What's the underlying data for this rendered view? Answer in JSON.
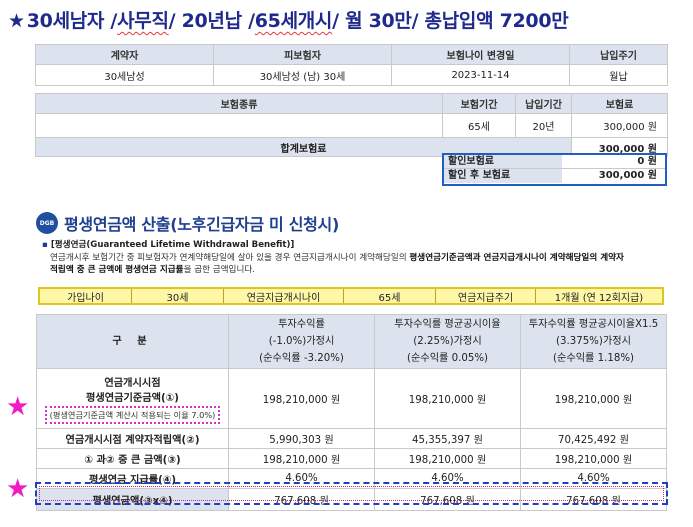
{
  "title": {
    "star": "★",
    "parts": [
      "30세남자 /",
      "사무직",
      "/ 20년납 /",
      "65세개시",
      "/ 월 30만/ 총납입액 7200만"
    ]
  },
  "info": {
    "headers": [
      "계약자",
      "피보험자",
      "보험나이 변경일",
      "납입주기"
    ],
    "values": [
      "30세남성",
      "30세남성 (남) 30세",
      "2023-11-14",
      "월납"
    ]
  },
  "premium": {
    "headers": [
      "보험종류",
      "보험기간",
      "납입기간",
      "보험료"
    ],
    "row": [
      "65세",
      "20년",
      "300,000  원"
    ],
    "total_label": "합계보험료",
    "total_value": "300,000  원",
    "discount_label": "할인보험료",
    "discount_value": "0  원",
    "after_label": "할인 후 보험료",
    "after_value": "300,000  원"
  },
  "section": {
    "logo": "DGB",
    "title": "평생연금액 산출(노후긴급자금 미 신청시)",
    "bullet": "[평생연금(Guaranteed Lifetime Withdrawal Benefit)]",
    "desc1_a": "연금개시후 보험기간 중 피보험자가 연계약해당일에 살아 있을 경우 연금지급개시나이 계약해당일의 ",
    "desc1_b": "평생연금기준금액과 연금지급개시나이 계약해당일의 계약자",
    "desc2_a": "적립액 중 큰 금액에 평생연금 지급률",
    "desc2_b": "을 곱한 금액입니다."
  },
  "conditions": [
    "가입나이",
    "30세",
    "연금지급개시나이",
    "65세",
    "연금지급주기",
    "1개월 (연 12회지급)"
  ],
  "table": {
    "col0": "구  분",
    "cols": [
      [
        "투자수익률",
        "(-1.0%)가정시",
        "(순수익률 -3.20%)"
      ],
      [
        "투자수익률 평균공시이율",
        "(2.25%)가정시",
        "(순수익률 0.05%)"
      ],
      [
        "투자수익률 평균공시이율X1.5",
        "(3.375%)가정시",
        "(순수익률 1.18%)"
      ]
    ],
    "rows": [
      {
        "label": [
          "연금개시시점",
          "평생연금기준금액(①)"
        ],
        "note": "(평생연금기준금액 계산시 적용되는 이율 7.0%)",
        "values": [
          "198,210,000 원",
          "198,210,000 원",
          "198,210,000 원"
        ]
      },
      {
        "label": [
          "연금개시시점 계약자적립액(②)"
        ],
        "values": [
          "5,990,303 원",
          "45,355,397 원",
          "70,425,492 원"
        ]
      },
      {
        "label": [
          "① 과② 중 큰 금액(③)"
        ],
        "values": [
          "198,210,000 원",
          "198,210,000 원",
          "198,210,000 원"
        ]
      },
      {
        "label": [
          "평생연금 지급률(④)"
        ],
        "values": [
          "4.60%",
          "4.60%",
          "4.60%"
        ]
      },
      {
        "label": [
          "평생연금액(③x④)"
        ],
        "values": [
          "767,608 원",
          "767,608 원",
          "767,608 원"
        ]
      }
    ]
  },
  "marker_star": "★"
}
